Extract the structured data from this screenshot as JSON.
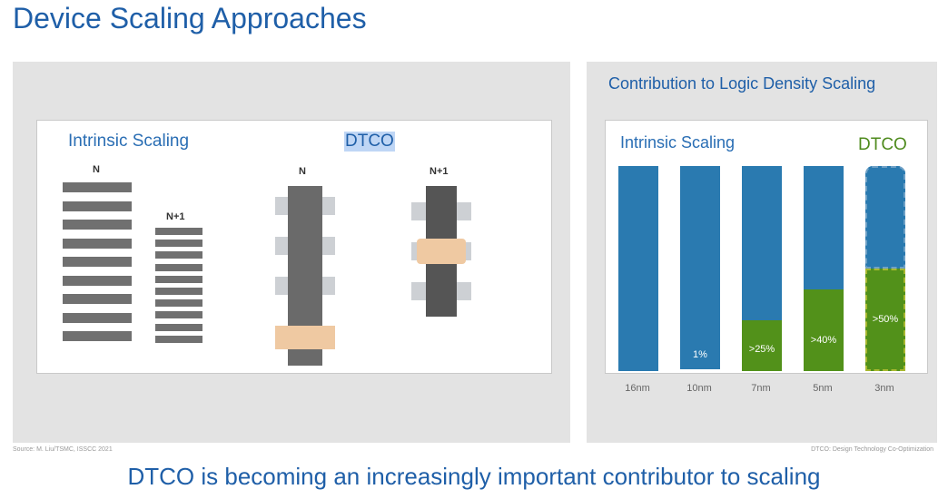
{
  "title": "Device Scaling Approaches",
  "left_panel": {
    "intrinsic_label": "Intrinsic Scaling",
    "dtco_label": "DTCO",
    "intrinsic_n_label": "N",
    "intrinsic_n1_label": "N+1",
    "dtco_n_label": "N",
    "dtco_n1_label": "N+1"
  },
  "right_panel": {
    "title": "Contribution to Logic Density Scaling",
    "intrinsic_label": "Intrinsic Scaling",
    "dtco_label": "DTCO"
  },
  "chart_data": {
    "type": "bar",
    "title": "Contribution to Logic Density Scaling",
    "categories": [
      "16nm",
      "10nm",
      "7nm",
      "5nm",
      "3nm"
    ],
    "series": [
      {
        "name": "Intrinsic Scaling",
        "values": [
          100,
          99,
          75,
          60,
          50
        ]
      },
      {
        "name": "DTCO",
        "values": [
          0,
          1,
          25,
          40,
          50
        ]
      }
    ],
    "data_labels": [
      "",
      "1%",
      ">25%",
      ">40%",
      ">50%"
    ],
    "ylim": [
      0,
      100
    ],
    "colors": {
      "intrinsic": "#2a7ab0",
      "dtco": "#52911a"
    }
  },
  "footnotes": {
    "source": "Source: M. Liu/TSMC, ISSCC 2021",
    "dtco_def": "DTCO: Design Technology Co-Optimization"
  },
  "bottom_message": "DTCO is becoming an increasingly important contributor to scaling"
}
